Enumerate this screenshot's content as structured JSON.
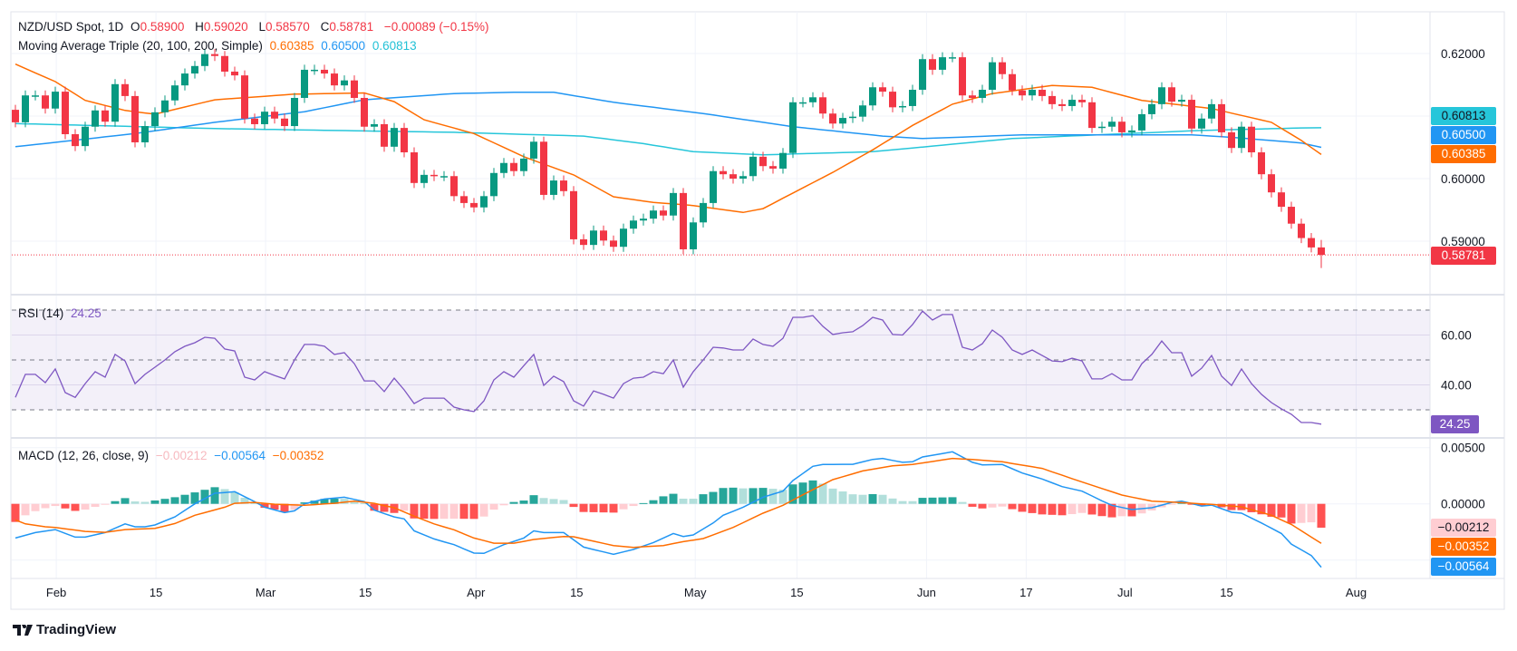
{
  "header": {
    "symbol": "NZD/USD Spot, 1D",
    "o_label": "O",
    "o": "0.58900",
    "h_label": "H",
    "h": "0.59020",
    "l_label": "L",
    "l": "0.58570",
    "c_label": "C",
    "c": "0.58781",
    "change": "−0.00089 (−0.15%)"
  },
  "ma_legend": {
    "title": "Moving Average Triple (20, 100, 200, Simple)",
    "ma20": "0.60385",
    "ma100": "0.60500",
    "ma200": "0.60813"
  },
  "rsi_legend": {
    "title": "RSI (14)",
    "value": "24.25"
  },
  "macd_legend": {
    "title": "MACD (12, 26, close, 9)",
    "hist": "−0.00212",
    "macd": "−0.00564",
    "signal": "−0.00352"
  },
  "badges": {
    "ma200": "0.60813",
    "ma100": "0.60500",
    "ma20": "0.60385",
    "last": "0.58781",
    "rsi": "24.25",
    "hist": "−0.00212",
    "signal": "−0.00352",
    "macd": "−0.00564"
  },
  "brand": "TradingView",
  "colors": {
    "up": "#089981",
    "down": "#f23645",
    "ma20": "#ff6d00",
    "ma100": "#2196f3",
    "ma200": "#26c6da",
    "rsi": "#7e57c2",
    "macd": "#2196f3",
    "signal": "#ff6d00",
    "hist_up_strong": "#26a69a",
    "hist_up_weak": "#b2dfdb",
    "hist_down_strong": "#ff5252",
    "hist_down_weak": "#ffcdd2"
  },
  "chart_data": {
    "type": "candlestick",
    "time_ticks": [
      {
        "bar": 4.1,
        "label": "Feb"
      },
      {
        "bar": 14.1,
        "label": "15"
      },
      {
        "bar": 25.1,
        "label": "Mar"
      },
      {
        "bar": 35.1,
        "label": "15"
      },
      {
        "bar": 46.2,
        "label": "Apr"
      },
      {
        "bar": 56.3,
        "label": "15"
      },
      {
        "bar": 68.2,
        "label": "May"
      },
      {
        "bar": 78.4,
        "label": "15"
      },
      {
        "bar": 91.4,
        "label": "Jun"
      },
      {
        "bar": 101.4,
        "label": "17"
      },
      {
        "bar": 111.3,
        "label": "Jul"
      },
      {
        "bar": 121.5,
        "label": "15"
      },
      {
        "bar": 134.5,
        "label": "Aug"
      }
    ],
    "price": {
      "y_ticks": [
        {
          "value": 0.62,
          "label": "0.62000"
        },
        {
          "value": 0.6,
          "label": "0.60000"
        },
        {
          "value": 0.59,
          "label": "0.59000"
        }
      ],
      "grid_values": [
        0.62,
        0.61,
        0.6,
        0.59
      ],
      "first_open": 0.611,
      "last": {
        "open": 0.589,
        "high": 0.5902,
        "low": 0.5857,
        "close": 0.58781
      },
      "closes": [
        0.609,
        0.6133,
        0.6133,
        0.6112,
        0.6139,
        0.6071,
        0.6052,
        0.6083,
        0.6109,
        0.6091,
        0.6151,
        0.6132,
        0.6058,
        0.6084,
        0.6106,
        0.6125,
        0.6149,
        0.6168,
        0.618,
        0.6199,
        0.6196,
        0.6171,
        0.6165,
        0.6096,
        0.6087,
        0.6107,
        0.6096,
        0.6084,
        0.6129,
        0.6174,
        0.6174,
        0.6168,
        0.6149,
        0.6157,
        0.6129,
        0.6083,
        0.6087,
        0.6051,
        0.6081,
        0.6042,
        0.5993,
        0.6006,
        0.6004,
        0.6004,
        0.5972,
        0.5961,
        0.5954,
        0.5972,
        0.6009,
        0.6025,
        0.6012,
        0.6032,
        0.6059,
        0.5974,
        0.5997,
        0.598,
        0.5903,
        0.5894,
        0.5917,
        0.5901,
        0.5891,
        0.592,
        0.5933,
        0.5936,
        0.5949,
        0.5941,
        0.5977,
        0.5887,
        0.593,
        0.5961,
        0.6012,
        0.6007,
        0.6,
        0.6004,
        0.6035,
        0.602,
        0.6016,
        0.6041,
        0.6122,
        0.6122,
        0.613,
        0.6104,
        0.6088,
        0.6097,
        0.6099,
        0.6117,
        0.6146,
        0.6139,
        0.6114,
        0.6116,
        0.6142,
        0.6191,
        0.6174,
        0.6194,
        0.6194,
        0.6133,
        0.6129,
        0.6142,
        0.6186,
        0.6167,
        0.6141,
        0.6133,
        0.6142,
        0.6132,
        0.6119,
        0.6116,
        0.6126,
        0.6122,
        0.6081,
        0.6083,
        0.6091,
        0.6074,
        0.6077,
        0.6103,
        0.6119,
        0.6146,
        0.6123,
        0.6126,
        0.608,
        0.6096,
        0.6119,
        0.6074,
        0.6049,
        0.6083,
        0.6042,
        0.6007,
        0.5978,
        0.5955,
        0.5928,
        0.5905,
        0.589,
        0.58781
      ],
      "ma20": [
        [
          0,
          0.6183
        ],
        [
          4,
          0.6155
        ],
        [
          7,
          0.6125
        ],
        [
          11,
          0.6109
        ],
        [
          14,
          0.6103
        ],
        [
          20,
          0.6126
        ],
        [
          28,
          0.6135
        ],
        [
          35,
          0.6137
        ],
        [
          38,
          0.6123
        ],
        [
          41,
          0.6094
        ],
        [
          46,
          0.6072
        ],
        [
          51,
          0.6035
        ],
        [
          56,
          0.6006
        ],
        [
          60,
          0.5971
        ],
        [
          64,
          0.5962
        ],
        [
          68,
          0.5957
        ],
        [
          73,
          0.5946
        ],
        [
          75,
          0.5952
        ],
        [
          78,
          0.5977
        ],
        [
          82,
          0.601
        ],
        [
          86,
          0.6046
        ],
        [
          90,
          0.6085
        ],
        [
          94,
          0.6119
        ],
        [
          98,
          0.6136
        ],
        [
          104,
          0.6149
        ],
        [
          108,
          0.6146
        ],
        [
          113,
          0.6125
        ],
        [
          120,
          0.6112
        ],
        [
          126,
          0.609
        ],
        [
          129,
          0.6061
        ],
        [
          131,
          0.60385
        ]
      ],
      "ma100": [
        [
          0,
          0.6051
        ],
        [
          12,
          0.6072
        ],
        [
          20,
          0.609
        ],
        [
          29,
          0.6107
        ],
        [
          35,
          0.6126
        ],
        [
          44,
          0.6136
        ],
        [
          50,
          0.6138
        ],
        [
          54,
          0.6138
        ],
        [
          60,
          0.6122
        ],
        [
          69,
          0.6104
        ],
        [
          78,
          0.6083
        ],
        [
          87,
          0.6068
        ],
        [
          91,
          0.6064
        ],
        [
          101,
          0.607
        ],
        [
          118,
          0.607
        ],
        [
          122,
          0.6066
        ],
        [
          129,
          0.6057
        ],
        [
          131,
          0.605
        ]
      ],
      "ma200": [
        [
          0,
          0.6088
        ],
        [
          20,
          0.608
        ],
        [
          44,
          0.6074
        ],
        [
          57,
          0.6068
        ],
        [
          63,
          0.6056
        ],
        [
          68,
          0.6043
        ],
        [
          75,
          0.6038
        ],
        [
          86,
          0.6043
        ],
        [
          100,
          0.6064
        ],
        [
          110,
          0.6071
        ],
        [
          119,
          0.6077
        ],
        [
          129,
          0.6081
        ],
        [
          131,
          0.60813
        ]
      ]
    },
    "rsi": {
      "y_ticks": [
        {
          "value": 60,
          "label": "60.00"
        },
        {
          "value": 40,
          "label": "40.00"
        }
      ],
      "bands": [
        70,
        50,
        30
      ],
      "values": [
        35,
        44.2,
        44.2,
        40.9,
        46.4,
        36.9,
        35,
        40.5,
        45.3,
        43.1,
        52.2,
        49.6,
        40.5,
        44.2,
        47.1,
        50,
        53.3,
        55.5,
        56.9,
        59.1,
        58.7,
        54.4,
        53.6,
        43.1,
        42,
        45.3,
        43.8,
        42.4,
        50,
        56.2,
        56.2,
        55.5,
        52.2,
        52.9,
        48.5,
        41.6,
        41.6,
        37.3,
        42.7,
        38,
        32.5,
        34.7,
        34.7,
        34.7,
        31.1,
        30,
        29.3,
        33.6,
        42,
        45.3,
        43.1,
        47.7,
        52.2,
        39.8,
        43.5,
        41.3,
        33.6,
        31.5,
        37.6,
        36.2,
        34.7,
        40.5,
        42.7,
        43.1,
        45.3,
        44.5,
        50,
        39.1,
        45.3,
        50,
        55.1,
        54.8,
        54,
        54,
        58.4,
        56.2,
        55.5,
        58.7,
        67.1,
        67.1,
        67.8,
        63.5,
        60.2,
        60.9,
        61.3,
        63.8,
        67.1,
        66,
        60.2,
        60,
        64.2,
        69.6,
        66,
        68.2,
        68.2,
        55.1,
        54,
        56.5,
        62,
        59.1,
        54,
        52.2,
        54,
        51.8,
        49.6,
        49.3,
        50.7,
        49.6,
        42.4,
        42.4,
        44.5,
        42,
        42,
        48.5,
        52.2,
        57.6,
        52.9,
        52.9,
        43.5,
        46.7,
        51.8,
        43.5,
        39.8,
        46.4,
        40.5,
        36.2,
        32.9,
        30.4,
        28.2,
        24.9,
        24.9,
        24.25
      ]
    },
    "macd": {
      "y_ticks": [
        {
          "value": 0.005,
          "label": "0.00500"
        },
        {
          "value": 0,
          "label": "0.00000"
        }
      ],
      "grid_values": [
        0.005,
        0,
        -0.005
      ],
      "macd": [
        [
          0,
          -0.00304
        ],
        [
          2,
          -0.00256
        ],
        [
          4,
          -0.00229
        ],
        [
          6,
          -0.00296
        ],
        [
          7,
          -0.00296
        ],
        [
          9,
          -0.00256
        ],
        [
          11,
          -0.00178
        ],
        [
          12,
          -0.00204
        ],
        [
          13,
          -0.00204
        ],
        [
          14,
          -0.00188
        ],
        [
          16,
          -0.00116
        ],
        [
          18,
          0
        ],
        [
          20,
          0.00094
        ],
        [
          22,
          0.00108
        ],
        [
          24,
          0.00019
        ],
        [
          25,
          -0.0003
        ],
        [
          27,
          -0.00078
        ],
        [
          28,
          -0.00062
        ],
        [
          29,
          0
        ],
        [
          31,
          0.00043
        ],
        [
          33,
          0.00059
        ],
        [
          35,
          0.0002
        ],
        [
          36,
          -0.00056
        ],
        [
          38,
          -0.00116
        ],
        [
          39,
          -0.00134
        ],
        [
          40,
          -0.0024
        ],
        [
          42,
          -0.00312
        ],
        [
          44,
          -0.00363
        ],
        [
          46,
          -0.00438
        ],
        [
          47,
          -0.0044
        ],
        [
          49,
          -0.00363
        ],
        [
          51,
          -0.00304
        ],
        [
          52,
          -0.0024
        ],
        [
          53,
          -0.00256
        ],
        [
          55,
          -0.00256
        ],
        [
          57,
          -0.00385
        ],
        [
          60,
          -0.00449
        ],
        [
          62,
          -0.00406
        ],
        [
          64,
          -0.00344
        ],
        [
          66,
          -0.00264
        ],
        [
          67,
          -0.0029
        ],
        [
          68,
          -0.00277
        ],
        [
          70,
          -0.0017
        ],
        [
          71,
          -0.00102
        ],
        [
          73,
          -0.0003
        ],
        [
          75,
          0.00059
        ],
        [
          77,
          0.00113
        ],
        [
          78,
          0.00207
        ],
        [
          80,
          0.00334
        ],
        [
          81,
          0.0035
        ],
        [
          84,
          0.00352
        ],
        [
          86,
          0.00395
        ],
        [
          87,
          0.00404
        ],
        [
          89,
          0.00369
        ],
        [
          90,
          0.00374
        ],
        [
          91,
          0.00417
        ],
        [
          94,
          0.00463
        ],
        [
          96,
          0.00369
        ],
        [
          97,
          0.00347
        ],
        [
          99,
          0.0035
        ],
        [
          101,
          0.00274
        ],
        [
          103,
          0.00221
        ],
        [
          105,
          0.00153
        ],
        [
          107,
          0.00113
        ],
        [
          109,
          0.00027
        ],
        [
          110,
          -0.00013
        ],
        [
          112,
          -0.00051
        ],
        [
          114,
          -0.00035
        ],
        [
          116,
          0.00013
        ],
        [
          117,
          0.00024
        ],
        [
          119,
          -0.00019
        ],
        [
          120,
          -0.00011
        ],
        [
          122,
          -0.00075
        ],
        [
          123,
          -0.00083
        ],
        [
          125,
          -0.0017
        ],
        [
          127,
          -0.00264
        ],
        [
          128,
          -0.00358
        ],
        [
          130,
          -0.0046
        ],
        [
          131,
          -0.00564
        ]
      ],
      "signal": [
        [
          0,
          -0.00143
        ],
        [
          1,
          -0.00178
        ],
        [
          3,
          -0.00204
        ],
        [
          4,
          -0.0021
        ],
        [
          7,
          -0.00245
        ],
        [
          9,
          -0.00253
        ],
        [
          11,
          -0.00229
        ],
        [
          14,
          -0.00218
        ],
        [
          16,
          -0.00175
        ],
        [
          18,
          -0.00102
        ],
        [
          21,
          -0.0003
        ],
        [
          22,
          5e-05
        ],
        [
          24,
          0.00013
        ],
        [
          26,
          -3e-05
        ],
        [
          29,
          -0.00013
        ],
        [
          32,
          5e-05
        ],
        [
          34,
          0.00024
        ],
        [
          36,
          5e-05
        ],
        [
          38,
          -0.00035
        ],
        [
          40,
          -0.0011
        ],
        [
          42,
          -0.00178
        ],
        [
          44,
          -0.00231
        ],
        [
          46,
          -0.00304
        ],
        [
          48,
          -0.0035
        ],
        [
          50,
          -0.0035
        ],
        [
          52,
          -0.00317
        ],
        [
          55,
          -0.0029
        ],
        [
          56,
          -0.00293
        ],
        [
          60,
          -0.00371
        ],
        [
          62,
          -0.00387
        ],
        [
          65,
          -0.00371
        ],
        [
          67,
          -0.00336
        ],
        [
          69,
          -0.00309
        ],
        [
          72,
          -0.0021
        ],
        [
          75,
          -0.00083
        ],
        [
          77,
          -0.00013
        ],
        [
          79,
          0.00081
        ],
        [
          82,
          0.00215
        ],
        [
          85,
          0.00293
        ],
        [
          88,
          0.00339
        ],
        [
          90,
          0.0035
        ],
        [
          94,
          0.00404
        ],
        [
          96,
          0.00395
        ],
        [
          99,
          0.00374
        ],
        [
          103,
          0.00315
        ],
        [
          107,
          0.00194
        ],
        [
          111,
          0.00078
        ],
        [
          114,
          0.00024
        ],
        [
          116,
          0.00016
        ],
        [
          120,
          -5e-05
        ],
        [
          123,
          -0.00027
        ],
        [
          126,
          -0.00102
        ],
        [
          128,
          -0.00183
        ],
        [
          131,
          -0.00352
        ]
      ]
    }
  }
}
